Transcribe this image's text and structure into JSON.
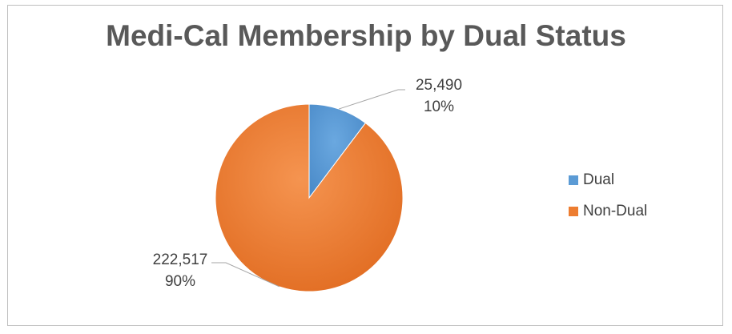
{
  "chart_data": {
    "type": "pie",
    "title": "Medi-Cal Membership by Dual Status",
    "slices": [
      {
        "name": "Dual",
        "value": 25490,
        "value_label": "25,490",
        "percent_label": "10%",
        "color": "#5b9bd5"
      },
      {
        "name": "Non-Dual",
        "value": 222517,
        "value_label": "222,517",
        "percent_label": "90%",
        "color": "#ed7d31"
      }
    ],
    "legend_position": "right"
  }
}
